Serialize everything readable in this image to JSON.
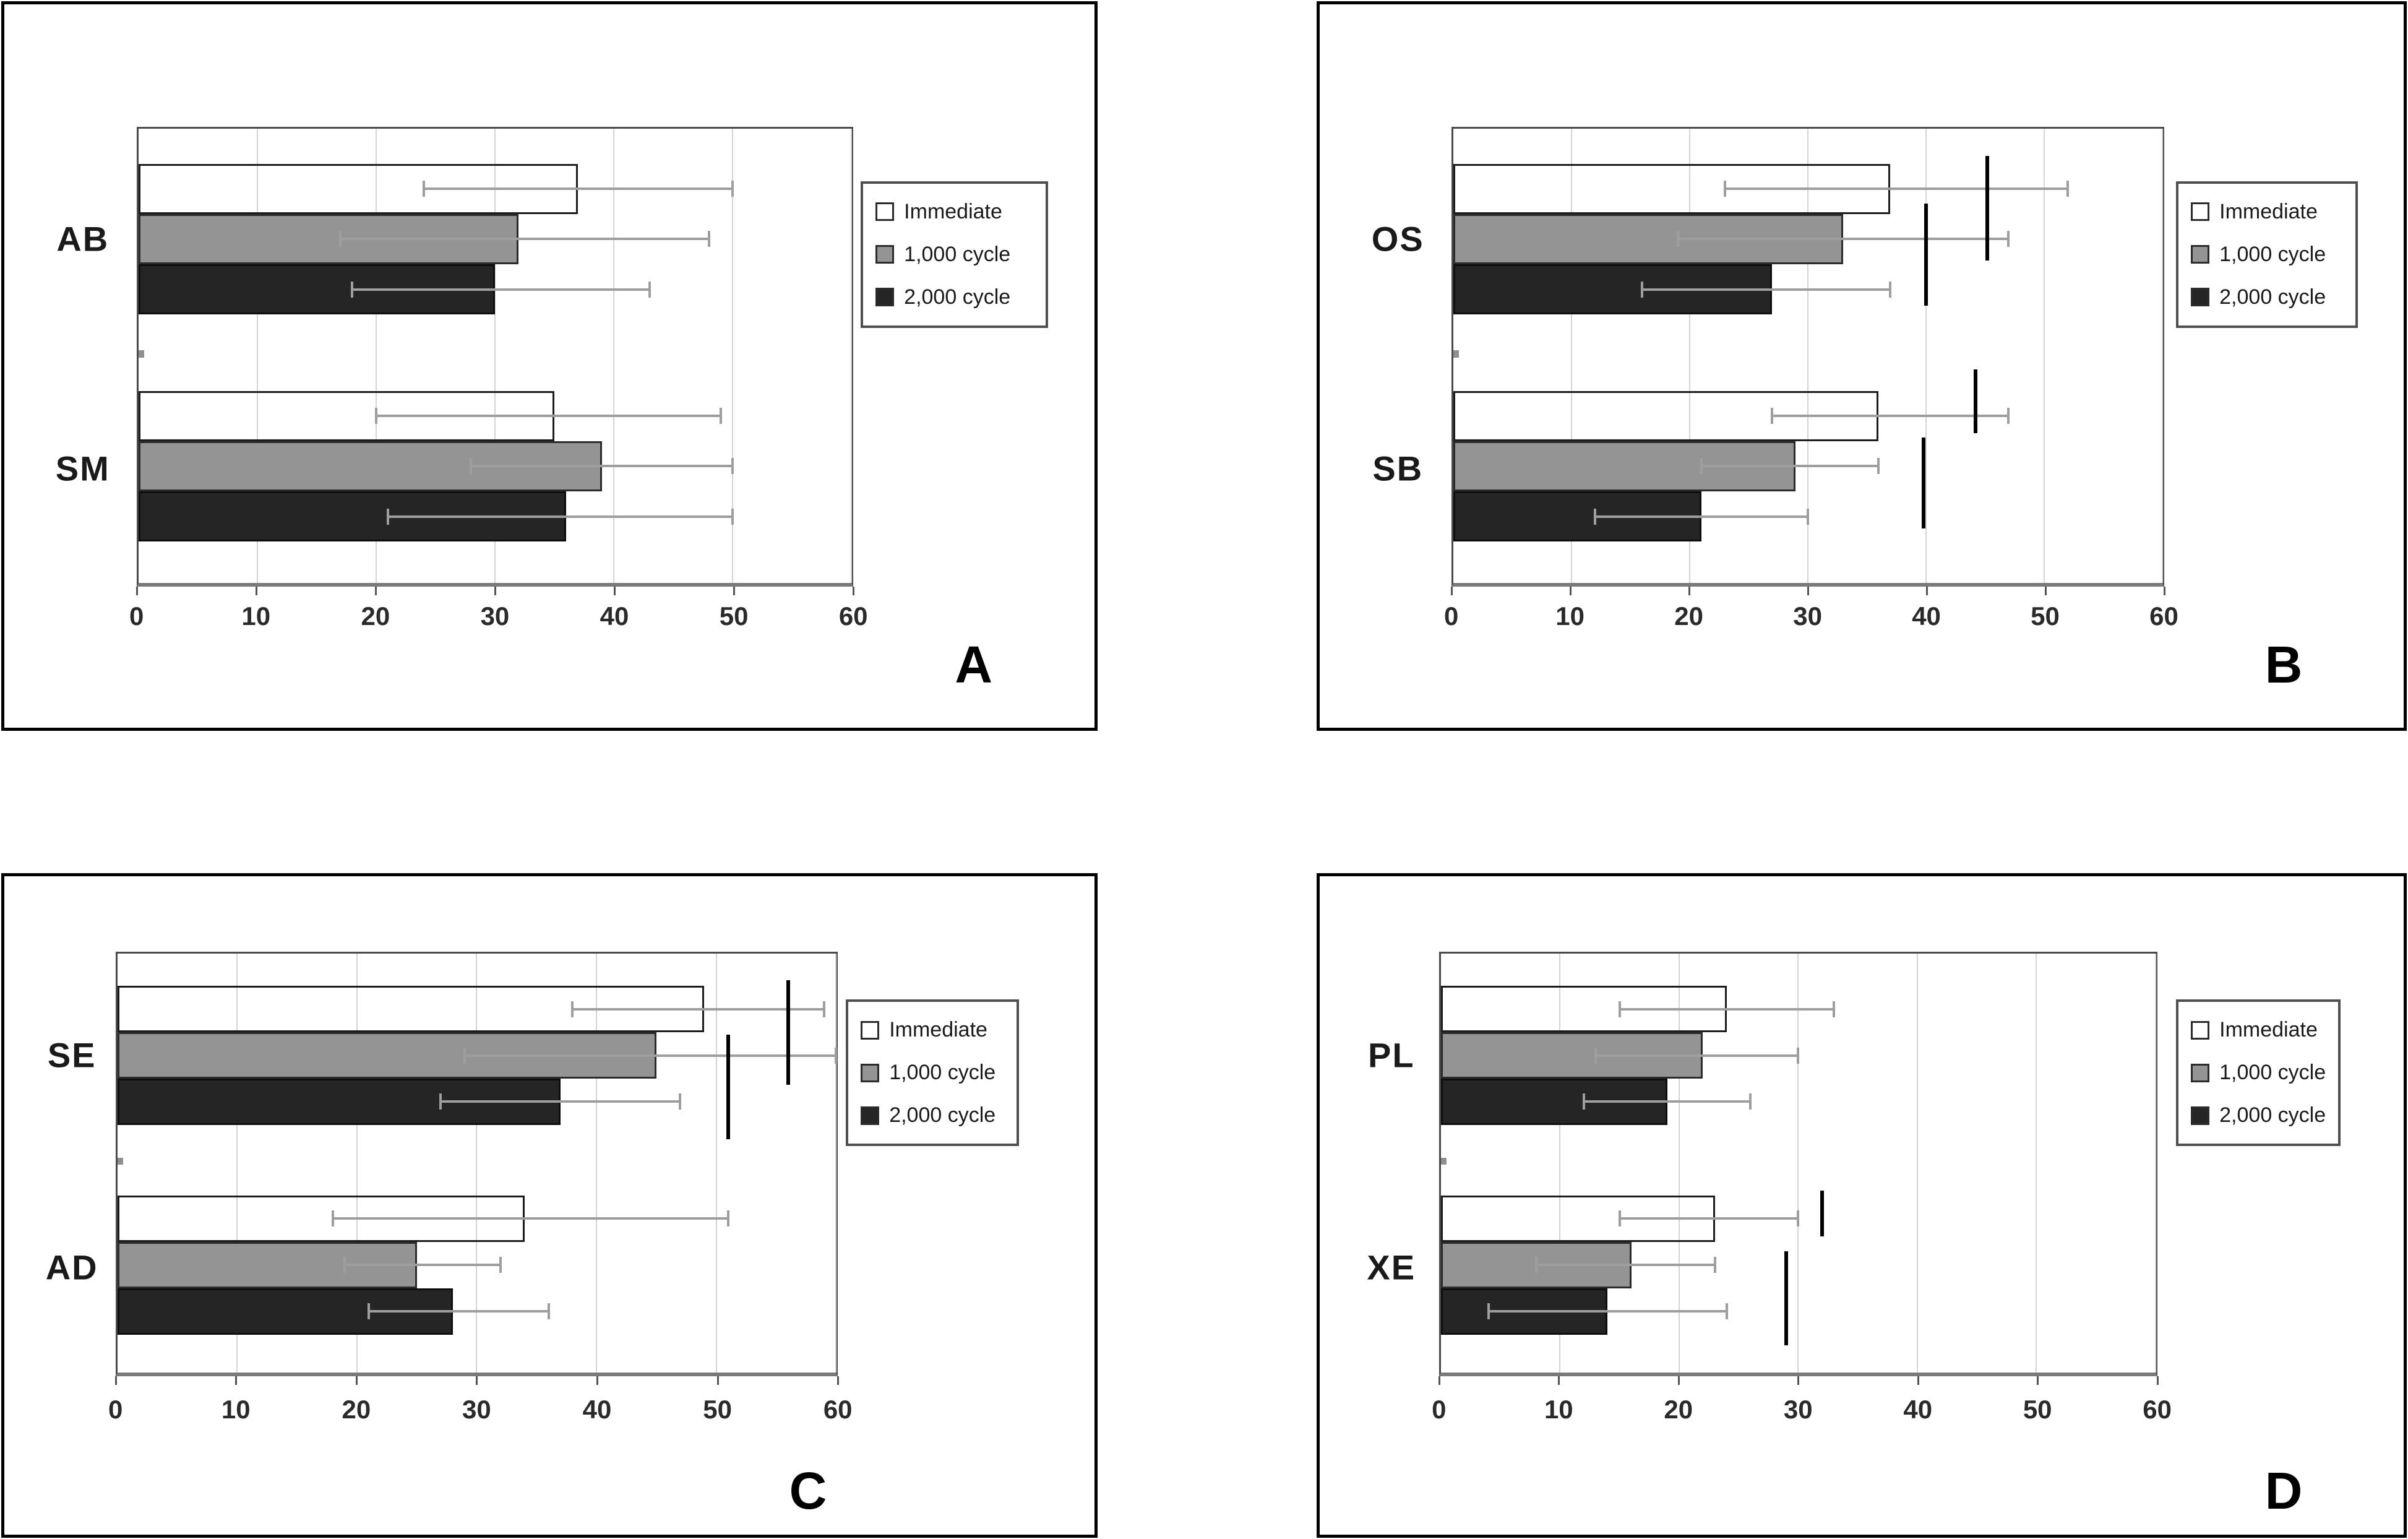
{
  "figure": {
    "background": "#ffffff",
    "description_colors": {
      "bar_white_fill": "#ffffff",
      "bar_gray_fill": "#949494",
      "bar_black_fill": "#252525",
      "error_bar": "#9e9e9e",
      "significance_line": "#000000",
      "gridline": "#d4d4d4",
      "plot_border": "#4a4a4a",
      "panel_border": "#000000"
    }
  },
  "chart_data": [
    {
      "panel_letter": "A",
      "type": "bar",
      "orientation": "horizontal",
      "title": "",
      "xlabel": "",
      "ylabel": "",
      "xlim": [
        0,
        60
      ],
      "xticks": [
        "0",
        "10",
        "20",
        "30",
        "40",
        "50",
        "60"
      ],
      "grid": true,
      "legend_position": "right",
      "categories": [
        "AB",
        "SM"
      ],
      "series": [
        {
          "name": "Immediate",
          "swatch": "white",
          "values": [
            37,
            35
          ],
          "err_low": [
            24,
            20
          ],
          "err_high": [
            50,
            49
          ]
        },
        {
          "name": "1,000 cycle",
          "swatch": "gray",
          "values": [
            32,
            39
          ],
          "err_low": [
            17,
            28
          ],
          "err_high": [
            48,
            50
          ]
        },
        {
          "name": "2,000 cycle",
          "swatch": "black",
          "values": [
            30,
            36
          ],
          "err_low": [
            18,
            21
          ],
          "err_high": [
            43,
            50
          ]
        }
      ],
      "sig_lines": [],
      "axis_speck": true,
      "layout": {
        "panel_rect": [
          0.0005,
          0.0008,
          0.4553,
          0.474
        ],
        "plot": {
          "left": 0.1213,
          "top": 0.1695,
          "width": 0.6575,
          "height": 0.6356
        },
        "tick_label_top": 0.826,
        "cat_label_x": 0.072,
        "legend": {
          "left": 0.7856,
          "top": 0.2445,
          "width": 0.172
        },
        "letter_pos": [
          0.872,
          0.872
        ]
      }
    },
    {
      "panel_letter": "B",
      "type": "bar",
      "orientation": "horizontal",
      "title": "",
      "xlabel": "",
      "ylabel": "",
      "xlim": [
        0,
        60
      ],
      "xticks": [
        "0",
        "10",
        "20",
        "30",
        "40",
        "50",
        "60"
      ],
      "grid": true,
      "legend_position": "right",
      "categories": [
        "OS",
        "SB"
      ],
      "series": [
        {
          "name": "Immediate",
          "swatch": "white",
          "values": [
            37,
            36
          ],
          "err_low": [
            23,
            27
          ],
          "err_high": [
            52,
            47
          ]
        },
        {
          "name": "1,000 cycle",
          "swatch": "gray",
          "values": [
            33,
            29
          ],
          "err_low": [
            19,
            21
          ],
          "err_high": [
            47,
            36
          ]
        },
        {
          "name": "2,000 cycle",
          "swatch": "black",
          "values": [
            27,
            21
          ],
          "err_low": [
            16,
            12
          ],
          "err_high": [
            37,
            30
          ]
        }
      ],
      "sig_lines": [
        {
          "x": 45.2,
          "y0": 0.06,
          "y1": 0.29
        },
        {
          "x": 40.0,
          "y0": 0.165,
          "y1": 0.39
        },
        {
          "x": 44.2,
          "y0": 0.53,
          "y1": 0.67
        },
        {
          "x": 39.8,
          "y0": 0.68,
          "y1": 0.88
        }
      ],
      "axis_speck": true,
      "layout": {
        "panel_rect": [
          0.5468,
          0.0008,
          0.4527,
          0.474
        ],
        "plot": {
          "left": 0.1213,
          "top": 0.1695,
          "width": 0.6575,
          "height": 0.6356
        },
        "tick_label_top": 0.826,
        "cat_label_x": 0.072,
        "legend": {
          "left": 0.79,
          "top": 0.2445,
          "width": 0.168
        },
        "letter_pos": [
          0.872,
          0.872
        ]
      }
    },
    {
      "panel_letter": "C",
      "type": "bar",
      "orientation": "horizontal",
      "title": "",
      "xlabel": "",
      "ylabel": "",
      "xlim": [
        0,
        60
      ],
      "xticks": [
        "0",
        "10",
        "20",
        "30",
        "40",
        "50",
        "60"
      ],
      "grid": true,
      "legend_position": "right",
      "categories": [
        "SE",
        "AD"
      ],
      "series": [
        {
          "name": "Immediate",
          "swatch": "white",
          "values": [
            49,
            34
          ],
          "err_low": [
            38,
            18
          ],
          "err_high": [
            59,
            51
          ]
        },
        {
          "name": "1,000 cycle",
          "swatch": "gray",
          "values": [
            45,
            25
          ],
          "err_low": [
            29,
            19
          ],
          "err_high": [
            60,
            32
          ]
        },
        {
          "name": "2,000 cycle",
          "swatch": "black",
          "values": [
            37,
            28
          ],
          "err_low": [
            27,
            21
          ],
          "err_high": [
            47,
            36
          ]
        }
      ],
      "sig_lines": [
        {
          "x": 56.0,
          "y0": 0.063,
          "y1": 0.313
        },
        {
          "x": 51.0,
          "y0": 0.193,
          "y1": 0.443
        }
      ],
      "axis_speck": true,
      "layout": {
        "panel_rect": [
          0.0005,
          0.5674,
          0.4553,
          0.4318
        ],
        "plot": {
          "left": 0.102,
          "top": 0.1145,
          "width": 0.6626,
          "height": 0.645
        },
        "tick_label_top": 0.788,
        "cat_label_x": 0.062,
        "legend": {
          "left": 0.772,
          "top": 0.187,
          "width": 0.159
        },
        "letter_pos": [
          0.72,
          0.888
        ]
      }
    },
    {
      "panel_letter": "D",
      "type": "bar",
      "orientation": "horizontal",
      "title": "",
      "xlabel": "",
      "ylabel": "",
      "xlim": [
        0,
        60
      ],
      "xticks": [
        "0",
        "10",
        "20",
        "30",
        "40",
        "50",
        "60"
      ],
      "grid": true,
      "legend_position": "right",
      "categories": [
        "PL",
        "XE"
      ],
      "series": [
        {
          "name": "Immediate",
          "swatch": "white",
          "values": [
            24,
            23
          ],
          "err_low": [
            15,
            15
          ],
          "err_high": [
            33,
            30
          ]
        },
        {
          "name": "1,000 cycle",
          "swatch": "gray",
          "values": [
            22,
            16
          ],
          "err_low": [
            13,
            8
          ],
          "err_high": [
            30,
            23
          ]
        },
        {
          "name": "2,000 cycle",
          "swatch": "black",
          "values": [
            19,
            14
          ],
          "err_low": [
            12,
            4
          ],
          "err_high": [
            26,
            24
          ]
        }
      ],
      "sig_lines": [
        {
          "x": 32.0,
          "y0": 0.565,
          "y1": 0.675
        },
        {
          "x": 29.0,
          "y0": 0.71,
          "y1": 0.935
        }
      ],
      "axis_speck": true,
      "layout": {
        "panel_rect": [
          0.5468,
          0.5674,
          0.4527,
          0.4318
        ],
        "plot": {
          "left": 0.11,
          "top": 0.1145,
          "width": 0.6626,
          "height": 0.645
        },
        "tick_label_top": 0.788,
        "cat_label_x": 0.066,
        "legend": {
          "left": 0.79,
          "top": 0.187,
          "width": 0.152
        },
        "letter_pos": [
          0.872,
          0.888
        ]
      }
    }
  ],
  "bar_geometry": {
    "group_tops": [
      0.077,
      0.577
    ],
    "bar_height": 0.1107,
    "speck": {
      "y": 0.487,
      "height": 0.017,
      "width_units": 0.5
    }
  }
}
